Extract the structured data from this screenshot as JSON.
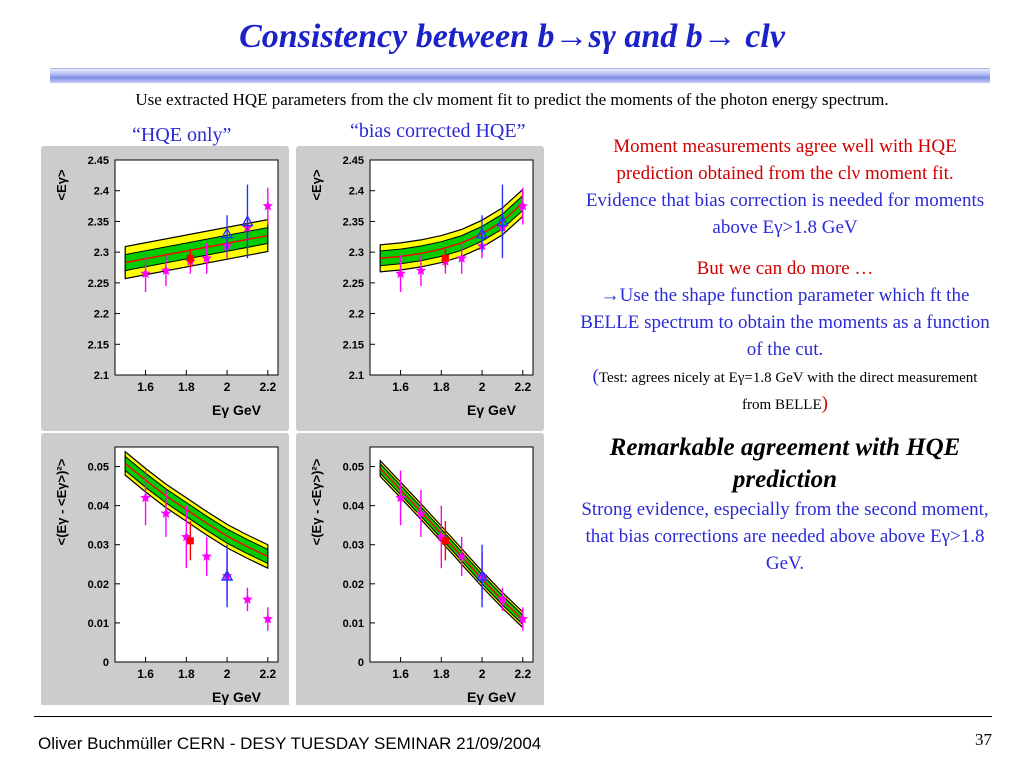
{
  "slide": {
    "title": "Consistency between b→sγ and b→ clν",
    "subtitle": "Use extracted HQE parameters from the clν moment fit to predict the moments of the photon energy spectrum.",
    "label_hqe_only": "“HQE only”",
    "label_bias_corrected": "“bias corrected HQE”"
  },
  "plots": {
    "mean_ylabel": "<Eγ>",
    "var_ylabel": "<(Eγ - <Eγ>)²>",
    "xlabel": "Eγ GeV",
    "x_ticks": [
      "1.6",
      "1.8",
      "2",
      "2.2"
    ],
    "mean_y_ticks": [
      "2.45",
      "2.4",
      "2.35",
      "2.3",
      "2.25",
      "2.2",
      "2.15",
      "2.1"
    ],
    "var_y_ticks": [
      "0.05",
      "0.04",
      "0.03",
      "0.02",
      "0.01",
      "0"
    ],
    "colors": {
      "band_outer": "#ffff00",
      "band_inner": "#00cc00",
      "center_line": "#ff0000",
      "star": "#ff00ff",
      "triangle": "#2233ff"
    }
  },
  "chart_data": [
    {
      "type": "scatter",
      "panel": "HQE only, first moment",
      "xlabel": "Eγ GeV",
      "ylabel": "<Eγ>",
      "xlim": [
        1.45,
        2.25
      ],
      "ylim": [
        2.1,
        2.45
      ],
      "band": {
        "x": [
          1.5,
          2.2
        ],
        "center": [
          2.283,
          2.327
        ],
        "inner_halfwidth": 0.013,
        "outer_halfwidth": 0.026
      },
      "series": [
        {
          "marker": "star",
          "points": [
            [
              1.6,
              2.265,
              0.03
            ],
            [
              1.7,
              2.27,
              0.025
            ],
            [
              1.82,
              2.285,
              0.02
            ],
            [
              1.9,
              2.29,
              0.025
            ],
            [
              2.0,
              2.31,
              0.02
            ],
            [
              2.1,
              2.34,
              0.02
            ],
            [
              2.2,
              2.375,
              0.03
            ]
          ]
        },
        {
          "marker": "square",
          "points": [
            [
              1.82,
              2.29,
              0.015
            ]
          ]
        },
        {
          "marker": "triangle",
          "points": [
            [
              2.0,
              2.33,
              0.03
            ],
            [
              2.1,
              2.35,
              0.06
            ]
          ]
        }
      ]
    },
    {
      "type": "scatter",
      "panel": "bias corrected HQE, first moment",
      "xlabel": "Eγ GeV",
      "ylabel": "<Eγ>",
      "xlim": [
        1.45,
        2.25
      ],
      "ylim": [
        2.1,
        2.45
      ],
      "band": {
        "x": [
          1.5,
          1.6,
          1.7,
          1.8,
          1.9,
          2.0,
          2.1,
          2.2
        ],
        "center": [
          2.29,
          2.293,
          2.298,
          2.305,
          2.315,
          2.33,
          2.35,
          2.38
        ],
        "inner_halfwidth": 0.012,
        "outer_halfwidth": 0.022
      },
      "series": [
        {
          "marker": "star",
          "points": [
            [
              1.6,
              2.265,
              0.03
            ],
            [
              1.7,
              2.27,
              0.025
            ],
            [
              1.82,
              2.285,
              0.02
            ],
            [
              1.9,
              2.29,
              0.025
            ],
            [
              2.0,
              2.31,
              0.02
            ],
            [
              2.1,
              2.34,
              0.02
            ],
            [
              2.2,
              2.375,
              0.03
            ]
          ]
        },
        {
          "marker": "square",
          "points": [
            [
              1.82,
              2.29,
              0.015
            ]
          ]
        },
        {
          "marker": "triangle",
          "points": [
            [
              2.0,
              2.33,
              0.03
            ],
            [
              2.1,
              2.35,
              0.06
            ]
          ]
        }
      ]
    },
    {
      "type": "scatter",
      "panel": "HQE only, second moment",
      "xlabel": "Eγ GeV",
      "ylabel": "<(Eγ - <Eγ>)²>",
      "xlim": [
        1.45,
        2.25
      ],
      "ylim": [
        0,
        0.055
      ],
      "band": {
        "x": [
          1.5,
          1.6,
          1.7,
          1.8,
          1.9,
          2.0,
          2.1,
          2.2
        ],
        "center": [
          0.0508,
          0.0465,
          0.0425,
          0.039,
          0.0355,
          0.0322,
          0.0295,
          0.027
        ],
        "inner_halfwidth": 0.0018,
        "outer_halfwidth": 0.003
      },
      "series": [
        {
          "marker": "star",
          "points": [
            [
              1.6,
              0.042,
              0.007
            ],
            [
              1.7,
              0.038,
              0.006
            ],
            [
              1.8,
              0.032,
              0.008
            ],
            [
              1.9,
              0.027,
              0.005
            ],
            [
              2.0,
              0.022,
              0.006
            ],
            [
              2.1,
              0.016,
              0.003
            ],
            [
              2.2,
              0.011,
              0.003
            ]
          ]
        },
        {
          "marker": "square",
          "points": [
            [
              1.82,
              0.031,
              0.005
            ]
          ]
        },
        {
          "marker": "triangle",
          "points": [
            [
              2.0,
              0.022,
              0.008
            ]
          ]
        }
      ]
    },
    {
      "type": "scatter",
      "panel": "bias corrected HQE, second moment",
      "xlabel": "Eγ GeV",
      "ylabel": "<(Eγ - <Eγ>)²>",
      "xlim": [
        1.45,
        2.25
      ],
      "ylim": [
        0,
        0.055
      ],
      "band": {
        "x": [
          1.5,
          1.6,
          1.7,
          1.8,
          1.9,
          2.0,
          2.1,
          2.2
        ],
        "center": [
          0.0495,
          0.044,
          0.0385,
          0.0328,
          0.027,
          0.0212,
          0.0158,
          0.0108
        ],
        "inner_halfwidth": 0.0012,
        "outer_halfwidth": 0.002
      },
      "series": [
        {
          "marker": "star",
          "points": [
            [
              1.6,
              0.042,
              0.007
            ],
            [
              1.7,
              0.038,
              0.006
            ],
            [
              1.8,
              0.032,
              0.008
            ],
            [
              1.9,
              0.027,
              0.005
            ],
            [
              2.0,
              0.022,
              0.006
            ],
            [
              2.1,
              0.016,
              0.003
            ],
            [
              2.2,
              0.011,
              0.003
            ]
          ]
        },
        {
          "marker": "square",
          "points": [
            [
              1.82,
              0.031,
              0.005
            ]
          ]
        },
        {
          "marker": "triangle",
          "points": [
            [
              2.0,
              0.022,
              0.008
            ]
          ]
        }
      ]
    }
  ],
  "side_text": {
    "para1": "Moment measurements agree well with HQE prediction obtained from the clν moment fit.",
    "para2": "Evidence that bias correction is needed for moments above Eγ>1.8 GeV",
    "para3_title": "But we can do more …",
    "para3_body": "→Use the shape function parameter which ft the BELLE spectrum to obtain the moments as a function of the cut.",
    "para3_note": "Test: agrees nicely at Eγ=1.8 GeV with the direct measurement from BELLE",
    "para4_title": "Remarkable agreement with HQE prediction",
    "para4_body": "Strong evidence, especially from the second moment, that bias corrections are needed above above Eγ>1.8 GeV."
  },
  "footer": {
    "author": "Oliver Buchmüller CERN - DESY TUESDAY SEMINAR 21/09/2004",
    "page": "37"
  }
}
